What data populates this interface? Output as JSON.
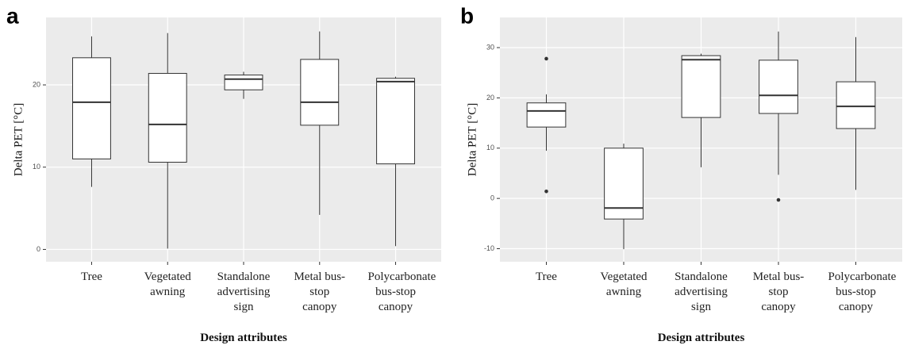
{
  "chart_data": [
    {
      "type": "box",
      "panel_label": "a",
      "y_label": "Delta PET [°C]",
      "x_label": "Design attributes",
      "categories": [
        "Tree",
        "Vegetated awning",
        "Standalone advertising sign",
        "Metal bus-stop canopy",
        "Polycarbonate bus-stop canopy"
      ],
      "boxes": [
        {
          "whisker_low": 7.6,
          "q1": 11.0,
          "median": 17.9,
          "q3": 23.3,
          "whisker_high": 25.9,
          "outliers": []
        },
        {
          "whisker_low": 0.1,
          "q1": 10.6,
          "median": 15.2,
          "q3": 21.4,
          "whisker_high": 26.3,
          "outliers": []
        },
        {
          "whisker_low": 18.3,
          "q1": 19.4,
          "median": 20.7,
          "q3": 21.2,
          "whisker_high": 21.6,
          "outliers": []
        },
        {
          "whisker_low": 4.2,
          "q1": 15.1,
          "median": 17.9,
          "q3": 23.1,
          "whisker_high": 26.5,
          "outliers": []
        },
        {
          "whisker_low": 0.4,
          "q1": 10.4,
          "median": 20.4,
          "q3": 20.8,
          "whisker_high": 21.0,
          "outliers": []
        }
      ],
      "ylim": [
        -1.5,
        28.2
      ],
      "yticks": [
        0,
        10,
        20
      ],
      "grid": true,
      "box_color": "#ffffff",
      "panel_color": "#ebebeb"
    },
    {
      "type": "box",
      "panel_label": "b",
      "y_label": "Delta PET [°C]",
      "x_label": "Design attributes",
      "categories": [
        "Tree",
        "Vegetated awning",
        "Standalone advertising sign",
        "Metal bus-stop canopy",
        "Polycarbonate bus-stop canopy"
      ],
      "boxes": [
        {
          "whisker_low": 9.5,
          "q1": 14.2,
          "median": 17.4,
          "q3": 19.0,
          "whisker_high": 20.7,
          "outliers": [
            27.8,
            1.4
          ]
        },
        {
          "whisker_low": -10.1,
          "q1": -4.1,
          "median": -1.9,
          "q3": 10.0,
          "whisker_high": 10.9,
          "outliers": []
        },
        {
          "whisker_low": 6.2,
          "q1": 16.1,
          "median": 27.6,
          "q3": 28.4,
          "whisker_high": 28.8,
          "outliers": []
        },
        {
          "whisker_low": 4.7,
          "q1": 16.9,
          "median": 20.5,
          "q3": 27.5,
          "whisker_high": 33.2,
          "outliers": [
            -0.3
          ]
        },
        {
          "whisker_low": 1.7,
          "q1": 13.9,
          "median": 18.3,
          "q3": 23.2,
          "whisker_high": 32.1,
          "outliers": []
        }
      ],
      "ylim": [
        -12.6,
        36.0
      ],
      "yticks": [
        -10,
        0,
        10,
        20,
        30
      ],
      "grid": true,
      "box_color": "#ffffff",
      "panel_color": "#ebebeb"
    }
  ]
}
